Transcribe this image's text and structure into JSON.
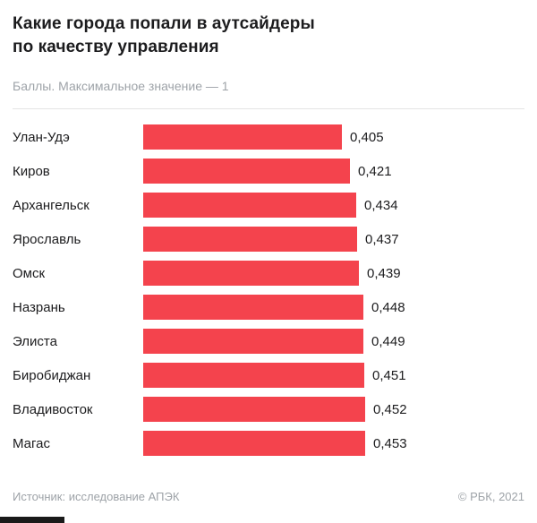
{
  "header": {
    "title": "Какие города попали в аутсайдеры\nпо качеству управления",
    "subtitle": "Баллы. Максимальное значение — 1"
  },
  "chart_data": {
    "type": "bar",
    "orientation": "horizontal",
    "title": "Какие города попали в аутсайдеры по качеству управления",
    "subtitle": "Баллы. Максимальное значение — 1",
    "categories": [
      "Улан-Удэ",
      "Киров",
      "Архангельск",
      "Ярославль",
      "Омск",
      "Назрань",
      "Элиста",
      "Биробиджан",
      "Владивосток",
      "Магас"
    ],
    "values": [
      0.405,
      0.421,
      0.434,
      0.437,
      0.439,
      0.448,
      0.449,
      0.451,
      0.452,
      0.453
    ],
    "values_display": [
      "0,405",
      "0,421",
      "0,434",
      "0,437",
      "0,439",
      "0,448",
      "0,449",
      "0,451",
      "0,452",
      "0,453"
    ],
    "xlim": [
      0,
      1
    ],
    "bar_color": "#f4434d",
    "grid": false,
    "legend": false,
    "value_labels": true
  },
  "footer": {
    "source": "Источник: исследование АПЭК",
    "copyright": "© РБК, 2021"
  }
}
